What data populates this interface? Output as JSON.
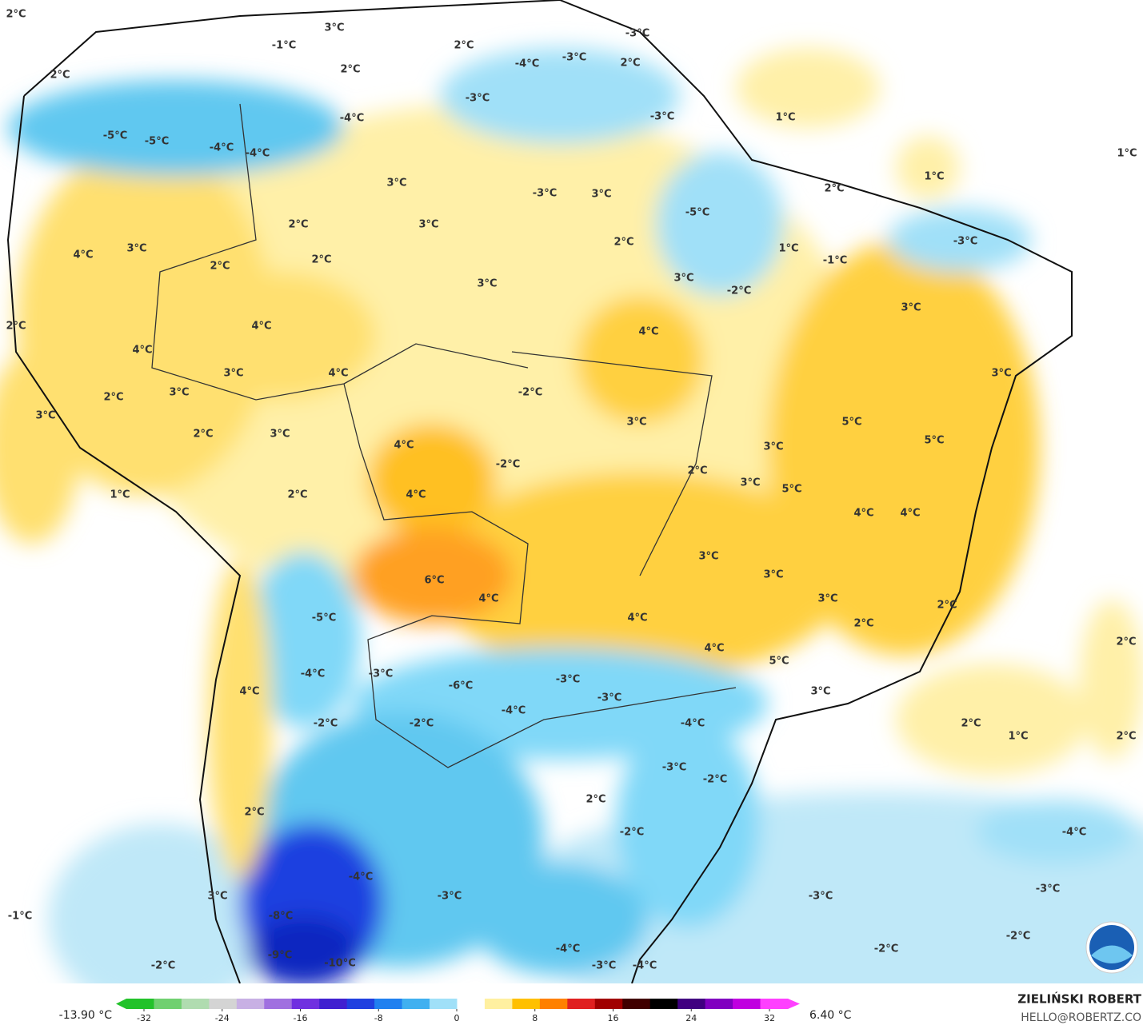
{
  "map": {
    "contour_labels": [
      "2°C",
      "3°C",
      "-1°C",
      "2°C",
      "-3°C",
      "-3°C",
      "-4°C",
      "2°C",
      "2°C",
      "2°C",
      "-3°C",
      "1°C",
      "-3°C",
      "-4°C",
      "-5°C",
      "-5°C",
      "-4°C",
      "-4°C",
      "1°C",
      "1°C",
      "3°C",
      "2°C",
      "-3°C",
      "3°C",
      "-5°C",
      "2°C",
      "3°C",
      "2°C",
      "-3°C",
      "1°C",
      "-1°C",
      "3°C",
      "4°C",
      "2°C",
      "2°C",
      "3°C",
      "3°C",
      "-2°C",
      "3°C",
      "2°C",
      "4°C",
      "4°C",
      "4°C",
      "3°C",
      "4°C",
      "3°C",
      "-2°C",
      "3°C",
      "2°C",
      "3°C",
      "3°C",
      "5°C",
      "2°C",
      "3°C",
      "5°C",
      "4°C",
      "3°C",
      "-2°C",
      "2°C",
      "3°C",
      "5°C",
      "2°C",
      "4°C",
      "1°C",
      "4°C",
      "4°C",
      "3°C",
      "6°C",
      "3°C",
      "4°C",
      "3°C",
      "2°C",
      "-5°C",
      "4°C",
      "2°C",
      "2°C",
      "4°C",
      "5°C",
      "-4°C",
      "-3°C",
      "4°C",
      "-3°C",
      "-6°C",
      "3°C",
      "-3°C",
      "-4°C",
      "-2°C",
      "-2°C",
      "2°C",
      "-4°C",
      "1°C",
      "2°C",
      "-3°C",
      "-2°C",
      "2°C",
      "2°C",
      "-2°C",
      "-4°C",
      "-4°C",
      "-3°C",
      "-3°C",
      "-3°C",
      "3°C",
      "-1°C",
      "-8°C",
      "-2°C",
      "-2°C",
      "-9°C",
      "-4°C",
      "-10°C",
      "-2°C",
      "-3°C",
      "-4°C"
    ],
    "colorbar": {
      "ticks": [
        -32,
        -24,
        -16,
        -8,
        0,
        8,
        16,
        24,
        32
      ],
      "colors": [
        "#22c22a",
        "#70d070",
        "#b0dcb0",
        "#d4d4d4",
        "#c8b0e4",
        "#a070e0",
        "#7030e0",
        "#4020d0",
        "#2040e0",
        "#2080f0",
        "#40b0f0",
        "#a0e0f8",
        "#ffffff",
        "#fff0a0",
        "#ffc000",
        "#ff8000",
        "#e02020",
        "#a00000",
        "#400000",
        "#000000",
        "#400080",
        "#8000c0",
        "#c000e0",
        "#ff40ff"
      ],
      "min_label": "-13.90 °C",
      "max_label": "6.40 °C"
    },
    "author": "ZIELIŃSKI ROBERT",
    "email": "HELLO@ROBERTZ.CO"
  }
}
